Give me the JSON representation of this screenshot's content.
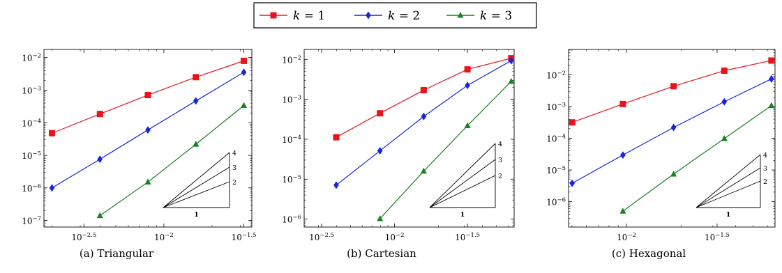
{
  "legend": {
    "entries": [
      {
        "label": "k = 1",
        "color": "#e8141c",
        "marker": "square"
      },
      {
        "label": "k = 2",
        "color": "#1626d9",
        "marker": "diamond"
      },
      {
        "label": "k = 3",
        "color": "#15821d",
        "marker": "triangle"
      }
    ]
  },
  "captions": [
    "(a) Triangular",
    "(b) Cartesian",
    "(c) Hexagonal"
  ],
  "chart_data": [
    {
      "type": "line",
      "caption": "(a) Triangular",
      "log_x": true,
      "log_y": true,
      "xlim_exp": [
        -2.75,
        -1.45
      ],
      "ylim_exp": [
        -7.2,
        -1.75
      ],
      "x_ticks": [
        {
          "exp": -2.5,
          "label": "10^-2.5"
        },
        {
          "exp": -2.0,
          "label": "10^-2"
        },
        {
          "exp": -1.5,
          "label": "10^-1.5"
        }
      ],
      "y_ticks": [
        {
          "exp": -2,
          "label": "10^-2"
        },
        {
          "exp": -3,
          "label": "10^-3"
        },
        {
          "exp": -4,
          "label": "10^-4"
        },
        {
          "exp": -5,
          "label": "10^-5"
        },
        {
          "exp": -6,
          "label": "10^-6"
        },
        {
          "exp": -7,
          "label": "10^-7"
        }
      ],
      "series": [
        {
          "name": "k = 1",
          "x_exp": [
            -2.7,
            -2.4,
            -2.1,
            -1.8,
            -1.5
          ],
          "y_exp": [
            -4.32,
            -3.73,
            -3.15,
            -2.6,
            -2.1
          ]
        },
        {
          "name": "k = 2",
          "x_exp": [
            -2.7,
            -2.4,
            -2.1,
            -1.8,
            -1.5
          ],
          "y_exp": [
            -6.0,
            -5.12,
            -4.22,
            -3.33,
            -2.45
          ]
        },
        {
          "name": "k = 3",
          "x_exp": [
            -2.4,
            -2.1,
            -1.8,
            -1.5
          ],
          "y_exp": [
            -6.85,
            -5.82,
            -4.66,
            -3.47
          ]
        }
      ],
      "slope_triangle": {
        "labels": [
          "4",
          "3",
          "2"
        ],
        "run_label": "1"
      }
    },
    {
      "type": "line",
      "caption": "(b) Cartesian",
      "log_x": true,
      "log_y": true,
      "xlim_exp": [
        -2.62,
        -1.18
      ],
      "ylim_exp": [
        -6.2,
        -1.75
      ],
      "x_ticks": [
        {
          "exp": -2.5,
          "label": "10^-2.5"
        },
        {
          "exp": -2.0,
          "label": "10^-2"
        },
        {
          "exp": -1.5,
          "label": "10^-1.5"
        }
      ],
      "y_ticks": [
        {
          "exp": -2,
          "label": "10^-2"
        },
        {
          "exp": -3,
          "label": "10^-3"
        },
        {
          "exp": -4,
          "label": "10^-4"
        },
        {
          "exp": -5,
          "label": "10^-5"
        },
        {
          "exp": -6,
          "label": "10^-6"
        }
      ],
      "series": [
        {
          "name": "k = 1",
          "x_exp": [
            -2.4,
            -2.1,
            -1.8,
            -1.5,
            -1.2
          ],
          "y_exp": [
            -3.95,
            -3.35,
            -2.77,
            -2.25,
            -1.97
          ]
        },
        {
          "name": "k = 2",
          "x_exp": [
            -2.4,
            -2.1,
            -1.8,
            -1.5,
            -1.2
          ],
          "y_exp": [
            -5.15,
            -4.29,
            -3.43,
            -2.65,
            -2.03
          ]
        },
        {
          "name": "k = 3",
          "x_exp": [
            -2.1,
            -1.8,
            -1.5,
            -1.2
          ],
          "y_exp": [
            -5.99,
            -4.8,
            -3.66,
            -2.55
          ]
        }
      ],
      "slope_triangle": {
        "labels": [
          "4",
          "3",
          "2"
        ],
        "run_label": "1"
      }
    },
    {
      "type": "line",
      "caption": "(c) Hexagonal",
      "log_x": true,
      "log_y": true,
      "xlim_exp": [
        -2.32,
        -1.18
      ],
      "ylim_exp": [
        -6.8,
        -1.2
      ],
      "x_ticks": [
        {
          "exp": -2.0,
          "label": "10^-2"
        },
        {
          "exp": -1.5,
          "label": "10^-1.5"
        }
      ],
      "y_ticks": [
        {
          "exp": -2,
          "label": "10^-2"
        },
        {
          "exp": -3,
          "label": "10^-3"
        },
        {
          "exp": -4,
          "label": "10^-4"
        },
        {
          "exp": -5,
          "label": "10^-5"
        },
        {
          "exp": -6,
          "label": "10^-6"
        }
      ],
      "series": [
        {
          "name": "k = 1",
          "x_exp": [
            -2.3,
            -2.02,
            -1.74,
            -1.46,
            -1.2
          ],
          "y_exp": [
            -3.5,
            -2.92,
            -2.36,
            -1.87,
            -1.55
          ]
        },
        {
          "name": "k = 2",
          "x_exp": [
            -2.3,
            -2.02,
            -1.74,
            -1.46,
            -1.2
          ],
          "y_exp": [
            -5.42,
            -4.53,
            -3.66,
            -2.85,
            -2.13
          ]
        },
        {
          "name": "k = 3",
          "x_exp": [
            -2.02,
            -1.74,
            -1.46,
            -1.2
          ],
          "y_exp": [
            -6.3,
            -5.13,
            -4.01,
            -2.97
          ]
        }
      ],
      "slope_triangle": {
        "labels": [
          "4",
          "3",
          "2"
        ],
        "run_label": "1"
      }
    }
  ]
}
